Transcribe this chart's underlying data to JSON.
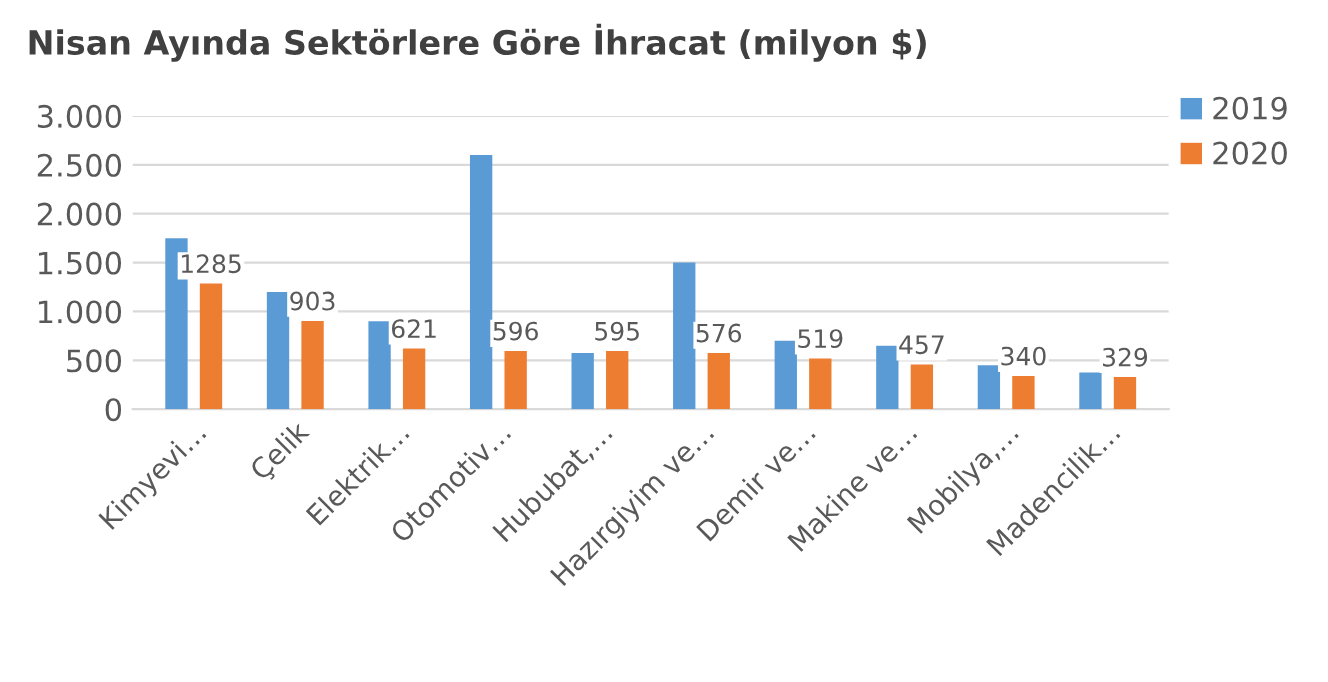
{
  "chart_data": {
    "type": "bar",
    "title": "Nisan Ayında Sektörlere Göre İhracat (milyon $)",
    "categories": [
      "Kimyevi…",
      "Çelik",
      "Elektrik…",
      "Otomotiv…",
      "Hububat,…",
      "Hazırgiyim ve…",
      "Demir ve…",
      "Makine ve…",
      "Mobilya,…",
      "Madencilik…"
    ],
    "series": [
      {
        "name": "2019",
        "color": "#5b9bd5",
        "values": [
          1750,
          1200,
          900,
          2600,
          575,
          1500,
          700,
          650,
          450,
          375
        ]
      },
      {
        "name": "2020",
        "color": "#ed7d31",
        "values": [
          1285,
          903,
          621,
          596,
          595,
          576,
          519,
          457,
          340,
          329
        ],
        "value_labels": [
          "1285",
          "903",
          "621",
          "596",
          "595",
          "576",
          "519",
          "457",
          "340",
          "329"
        ]
      }
    ],
    "ylim": [
      0,
      3000
    ],
    "yticks": [
      0,
      {
        "value": 500,
        "label": "500"
      },
      {
        "value": 1000,
        "label": "1.000"
      },
      {
        "value": 1500,
        "label": "1.500"
      },
      {
        "value": 2000,
        "label": "2.000"
      },
      {
        "value": 2500,
        "label": "2.500"
      },
      {
        "value": 3000,
        "label": "3.000"
      }
    ],
    "grid": "y",
    "legend": "top right"
  }
}
